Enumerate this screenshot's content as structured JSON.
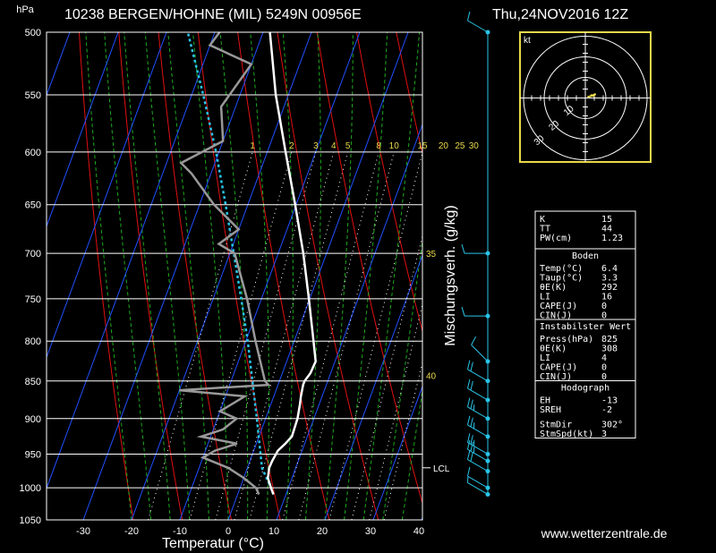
{
  "header": {
    "station": "10238 BERGEN/HOHNE (MIL) 5249N 00956E",
    "datetime": "Thu,24NOV2016 12Z"
  },
  "footer": {
    "website": "www.wetterzentrale.de"
  },
  "chart_data": {
    "type": "skew-t",
    "yunit": "hPa",
    "xlabel": "Temperatur (°C)",
    "mixing_label": "Mischungsverh. (g/kg)",
    "pressure_levels": [
      500,
      550,
      600,
      650,
      700,
      750,
      800,
      850,
      900,
      950,
      1000,
      1050
    ],
    "temp_ticks": [
      -30,
      -20,
      -10,
      0,
      10,
      20,
      30,
      40
    ],
    "mixing_ratios": [
      "1",
      "2",
      "3",
      "4",
      "5",
      "8",
      "10",
      "15",
      "20",
      "25",
      "30"
    ],
    "side_labels": [
      {
        "p": 700,
        "text": "35"
      },
      {
        "p": 843,
        "text": "40"
      }
    ],
    "lcl": {
      "p": 970,
      "label": "LCL"
    },
    "temperature": [
      {
        "p": 1010,
        "t": 7.4
      },
      {
        "p": 1000,
        "t": 6.4
      },
      {
        "p": 985,
        "t": 5.0
      },
      {
        "p": 970,
        "t": 4.5
      },
      {
        "p": 960,
        "t": 4.6
      },
      {
        "p": 945,
        "t": 5.0
      },
      {
        "p": 935,
        "t": 6.0
      },
      {
        "p": 925,
        "t": 6.8
      },
      {
        "p": 900,
        "t": 6.6
      },
      {
        "p": 880,
        "t": 6.0
      },
      {
        "p": 870,
        "t": 5.6
      },
      {
        "p": 855,
        "t": 5.2
      },
      {
        "p": 850,
        "t": 5.2
      },
      {
        "p": 840,
        "t": 5.8
      },
      {
        "p": 825,
        "t": 6.0
      },
      {
        "p": 800,
        "t": 4.0
      },
      {
        "p": 750,
        "t": -0.2
      },
      {
        "p": 700,
        "t": -4.8
      },
      {
        "p": 650,
        "t": -10.2
      },
      {
        "p": 600,
        "t": -16.2
      },
      {
        "p": 550,
        "t": -22.6
      },
      {
        "p": 500,
        "t": -28.6
      }
    ],
    "dewpoint": [
      {
        "p": 1010,
        "t": 4.4
      },
      {
        "p": 1000,
        "t": 3.3
      },
      {
        "p": 985,
        "t": 0.0
      },
      {
        "p": 970,
        "t": -4.0
      },
      {
        "p": 955,
        "t": -10.0
      },
      {
        "p": 945,
        "t": -8.0
      },
      {
        "p": 935,
        "t": -4.0
      },
      {
        "p": 925,
        "t": -12.0
      },
      {
        "p": 915,
        "t": -8.0
      },
      {
        "p": 900,
        "t": -6.0
      },
      {
        "p": 890,
        "t": -10.0
      },
      {
        "p": 870,
        "t": -6.0
      },
      {
        "p": 862,
        "t": -20.0
      },
      {
        "p": 855,
        "t": -2.0
      },
      {
        "p": 850,
        "t": -3.0
      },
      {
        "p": 800,
        "t": -8.0
      },
      {
        "p": 750,
        "t": -13.0
      },
      {
        "p": 700,
        "t": -19.0
      },
      {
        "p": 690,
        "t": -23.0
      },
      {
        "p": 675,
        "t": -20.0
      },
      {
        "p": 650,
        "t": -27.0
      },
      {
        "p": 620,
        "t": -34.0
      },
      {
        "p": 610,
        "t": -37.0
      },
      {
        "p": 590,
        "t": -30.0
      },
      {
        "p": 560,
        "t": -33.0
      },
      {
        "p": 525,
        "t": -30.0
      },
      {
        "p": 510,
        "t": -40.0
      },
      {
        "p": 500,
        "t": -39.0
      }
    ],
    "parcel": [
      {
        "p": 1010,
        "t": 7.4
      },
      {
        "p": 1000,
        "t": 6.4
      },
      {
        "p": 970,
        "t": 3.0
      },
      {
        "p": 900,
        "t": -1.8
      },
      {
        "p": 850,
        "t": -5.6
      },
      {
        "p": 800,
        "t": -9.6
      },
      {
        "p": 750,
        "t": -14.2
      },
      {
        "p": 700,
        "t": -19.2
      },
      {
        "p": 650,
        "t": -24.6
      },
      {
        "p": 600,
        "t": -30.6
      },
      {
        "p": 550,
        "t": -37.6
      },
      {
        "p": 500,
        "t": -45.6
      }
    ],
    "winds": [
      {
        "p": 1010,
        "dir": 300,
        "spd": 5
      },
      {
        "p": 1000,
        "dir": 300,
        "spd": 10
      },
      {
        "p": 975,
        "dir": 300,
        "spd": 20
      },
      {
        "p": 960,
        "dir": 300,
        "spd": 25
      },
      {
        "p": 950,
        "dir": 300,
        "spd": 25
      },
      {
        "p": 925,
        "dir": 300,
        "spd": 25
      },
      {
        "p": 900,
        "dir": 300,
        "spd": 25
      },
      {
        "p": 875,
        "dir": 300,
        "spd": 20
      },
      {
        "p": 850,
        "dir": 300,
        "spd": 20
      },
      {
        "p": 825,
        "dir": 315,
        "spd": 10
      },
      {
        "p": 770,
        "dir": 270,
        "spd": 10
      },
      {
        "p": 700,
        "dir": 270,
        "spd": 10
      },
      {
        "p": 500,
        "dir": 300,
        "spd": 10
      }
    ]
  },
  "hodograph": {
    "unit": "kt",
    "rings": [
      "10",
      "20",
      "30"
    ],
    "points": [
      {
        "u": 2.5,
        "v": 1.5
      },
      {
        "u": 4,
        "v": 1
      },
      {
        "u": 5,
        "v": 2
      },
      {
        "u": 3,
        "v": 1
      },
      {
        "u": 1,
        "v": 0.5
      }
    ]
  },
  "indices": {
    "rows1": [
      {
        "label": "K",
        "value": "15"
      },
      {
        "label": "TT",
        "value": "44"
      },
      {
        "label": "PW(cm)",
        "value": "1.23"
      }
    ],
    "boden_title": "Boden",
    "boden": [
      {
        "label": "Temp(°C)",
        "value": "6.4"
      },
      {
        "label": "Taup(°C)",
        "value": "3.3"
      },
      {
        "label": "θE(K)",
        "value": "292"
      },
      {
        "label": "LI",
        "value": "16"
      },
      {
        "label": "CAPE(J)",
        "value": "0"
      },
      {
        "label": "CIN(J)",
        "value": "0"
      }
    ],
    "instabil_title": "Instabilster Wert",
    "instabil": [
      {
        "label": "Press(hPa)",
        "value": "825"
      },
      {
        "label": "θE(K)",
        "value": "308"
      },
      {
        "label": "LI",
        "value": "4"
      },
      {
        "label": "CAPE(J)",
        "value": "0"
      },
      {
        "label": "CIN(J)",
        "value": "0"
      }
    ],
    "hodo_title": "Hodograph",
    "hodo": [
      {
        "label": "EH",
        "value": "-13"
      },
      {
        "label": "SREH",
        "value": "-2"
      },
      {
        "label": "StmDir",
        "value": "302°"
      },
      {
        "label": "StmSpd(kt)",
        "value": "3"
      }
    ]
  }
}
